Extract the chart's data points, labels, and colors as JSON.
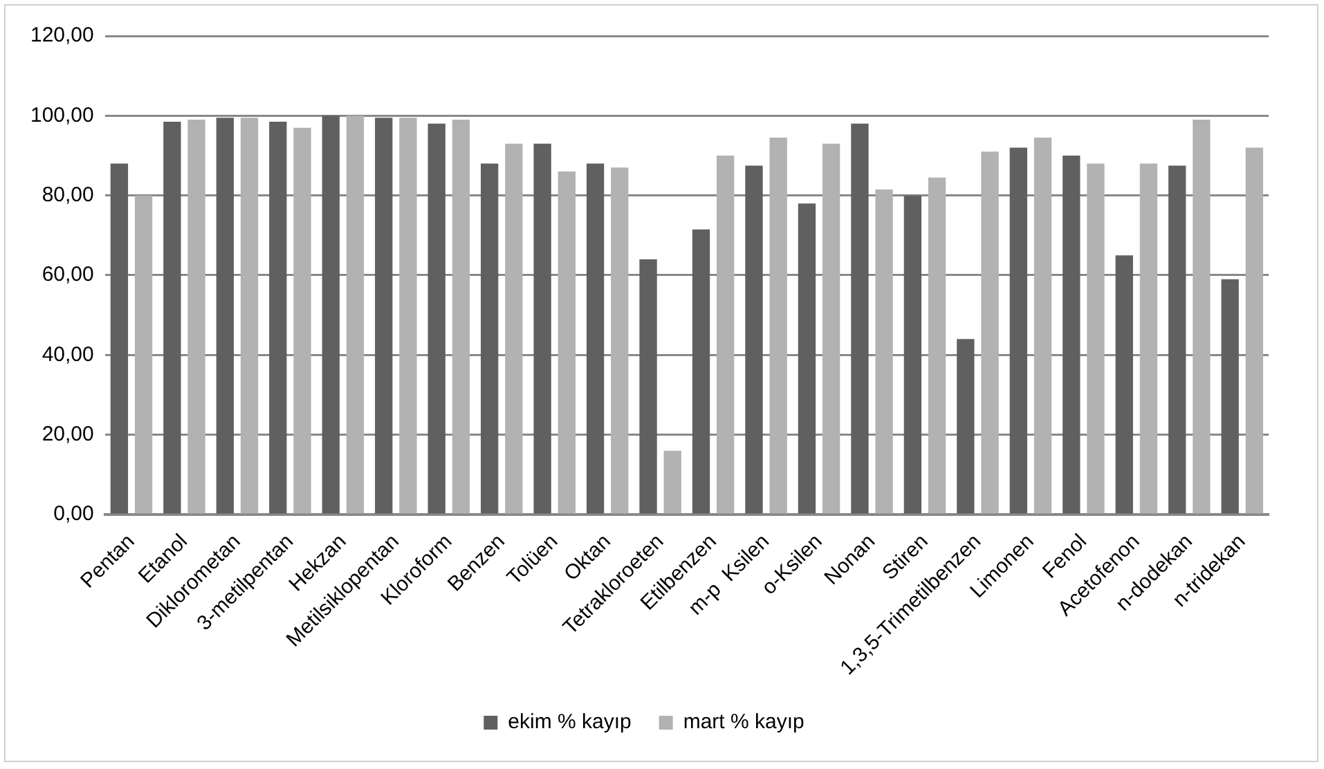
{
  "chart_data": {
    "type": "bar",
    "categories": [
      "Pentan",
      "Etanol",
      "Diklorometan",
      "3-metilpentan",
      "Hekzan",
      "Metilsiklopentan",
      "Kloroform",
      "Benzen",
      "Tolüen",
      "Oktan",
      "Tetrakloroeten",
      "Etilbenzen",
      "m-p  Ksilen",
      "o-Ksilen",
      "Nonan",
      "Stiren",
      "1,3,5-Trimetilbenzen",
      "Limonen",
      "Fenol",
      "Acetofenon",
      "n-dodekan",
      "n-tridekan"
    ],
    "series": [
      {
        "name": "ekim % kayıp",
        "color": "#606060",
        "values": [
          88,
          98.5,
          99.5,
          98.5,
          100,
          99.5,
          98,
          88,
          93,
          88,
          64,
          71.5,
          87.5,
          78,
          98,
          80,
          44,
          92,
          90,
          65,
          87.5,
          59
        ]
      },
      {
        "name": "mart % kayıp",
        "color": "#b2b2b2",
        "values": [
          80,
          99,
          99.5,
          97,
          100,
          99.5,
          99,
          93,
          86,
          87,
          16,
          90,
          94.5,
          93,
          81.5,
          84.5,
          91,
          94.5,
          88,
          88,
          99,
          92
        ]
      }
    ],
    "ylim": [
      0,
      120
    ],
    "yticks": [
      {
        "value": 0,
        "label": "0,00"
      },
      {
        "value": 20,
        "label": "20,00"
      },
      {
        "value": 40,
        "label": "40,00"
      },
      {
        "value": 60,
        "label": "60,00"
      },
      {
        "value": 80,
        "label": "80,00"
      },
      {
        "value": 100,
        "label": "100,00"
      },
      {
        "value": 120,
        "label": "120,00"
      }
    ],
    "grid": "y",
    "legend": "bottom"
  }
}
